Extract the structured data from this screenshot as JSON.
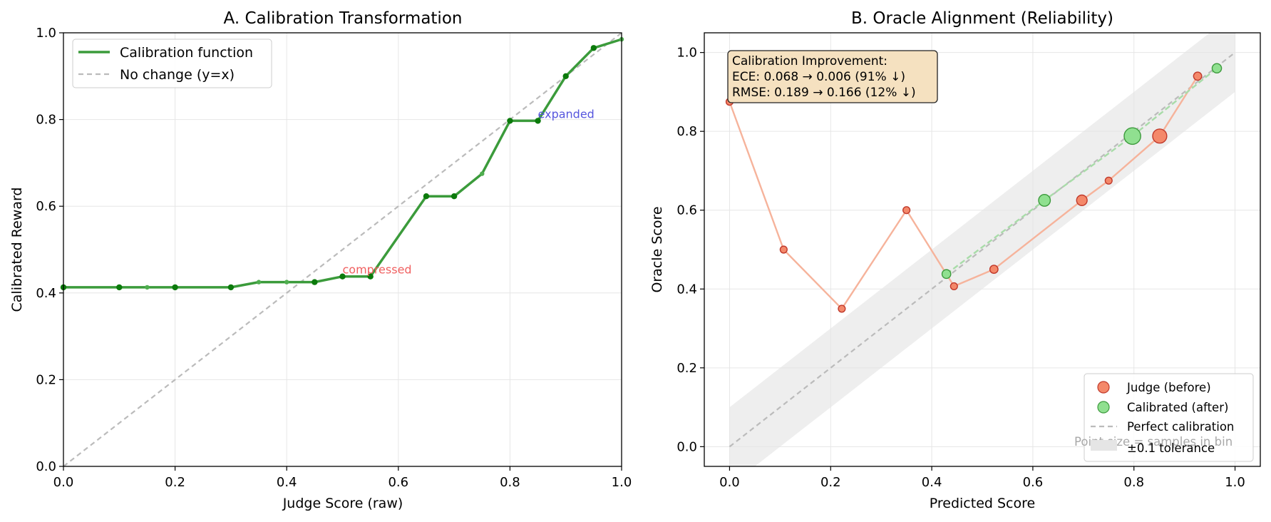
{
  "colors": {
    "calib_line": "#3b9b3b",
    "calib_dot": "#0b7a0b",
    "calib_dot_light": "#4fae4f",
    "identity": "#bbbbbb",
    "judge_line": "#f6b39b",
    "judge_fill": "#f4886a",
    "judge_edge": "#c0392b",
    "calibrated_fill": "#90e090",
    "calibrated_edge": "#3d9a3d",
    "tolerance_band": "#e5e5e5",
    "infobox_bg": "#f5e1c0",
    "compressed_text": "#f06060",
    "expanded_text": "#5555dd",
    "grid": "#e6e6e6"
  },
  "chart_data": [
    {
      "type": "line",
      "title": "A. Calibration Transformation",
      "xlabel": "Judge Score (raw)",
      "ylabel": "Calibrated Reward",
      "xlim": [
        0,
        1
      ],
      "ylim": [
        0,
        1
      ],
      "xticks": [
        "0.0",
        "0.2",
        "0.4",
        "0.6",
        "0.8",
        "1.0"
      ],
      "yticks": [
        "0.0",
        "0.2",
        "0.4",
        "0.6",
        "0.8",
        "1.0"
      ],
      "grid": true,
      "legend_position": "upper-left",
      "series": [
        {
          "name": "Calibration function",
          "x": [
            0.0,
            0.1,
            0.15,
            0.2,
            0.3,
            0.35,
            0.4,
            0.45,
            0.5,
            0.55,
            0.65,
            0.7,
            0.75,
            0.8,
            0.85,
            0.9,
            0.95,
            1.0
          ],
          "y": [
            0.413,
            0.413,
            0.413,
            0.413,
            0.413,
            0.425,
            0.425,
            0.425,
            0.438,
            0.438,
            0.623,
            0.623,
            0.675,
            0.797,
            0.797,
            0.9,
            0.965,
            0.985
          ],
          "markers_strong": [
            0.0,
            0.1,
            0.2,
            0.3,
            0.45,
            0.5,
            0.55,
            0.65,
            0.7,
            0.8,
            0.85,
            0.9,
            0.95
          ]
        },
        {
          "name": "No change (y=x)",
          "x": [
            0,
            1
          ],
          "y": [
            0,
            1
          ]
        }
      ],
      "annotations": [
        {
          "text": "compressed",
          "x": 0.5,
          "y": 0.438,
          "color_key": "compressed_text"
        },
        {
          "text": "expanded",
          "x": 0.85,
          "y": 0.797,
          "color_key": "expanded_text"
        }
      ]
    },
    {
      "type": "scatter",
      "title": "B. Oracle Alignment (Reliability)",
      "xlabel": "Predicted Score",
      "ylabel": "Oracle Score",
      "xlim": [
        -0.05,
        1.05
      ],
      "ylim": [
        -0.05,
        1.05
      ],
      "xticks": [
        "0.0",
        "0.2",
        "0.4",
        "0.6",
        "0.8",
        "1.0"
      ],
      "yticks": [
        "0.0",
        "0.2",
        "0.4",
        "0.6",
        "0.8",
        "1.0"
      ],
      "grid": true,
      "legend_position": "lower-right",
      "series": [
        {
          "name": "Judge (before)",
          "x": [
            0.0,
            0.107,
            0.222,
            0.35,
            0.444,
            0.523,
            0.697,
            0.75,
            0.851,
            0.926
          ],
          "y": [
            0.875,
            0.5,
            0.35,
            0.6,
            0.407,
            0.45,
            0.625,
            0.675,
            0.788,
            0.94
          ],
          "sizes": [
            4,
            4,
            4,
            4,
            4,
            6,
            10,
            4,
            16,
            6
          ]
        },
        {
          "name": "Calibrated (after)",
          "x": [
            0.429,
            0.623,
            0.797,
            0.964
          ],
          "y": [
            0.438,
            0.625,
            0.788,
            0.96
          ],
          "sizes": [
            7,
            12,
            20,
            8
          ]
        },
        {
          "name": "Perfect calibration",
          "x": [
            0,
            1
          ],
          "y": [
            0,
            1
          ]
        },
        {
          "name": "±0.1 tolerance",
          "band": 0.1
        }
      ],
      "infobox": {
        "line1": "Calibration Improvement:",
        "line2": "ECE: 0.068 → 0.006 (91% ↓)",
        "line3": "RMSE: 0.189 → 0.166 (12% ↓)"
      },
      "note": "Point size = samples in bin"
    }
  ]
}
